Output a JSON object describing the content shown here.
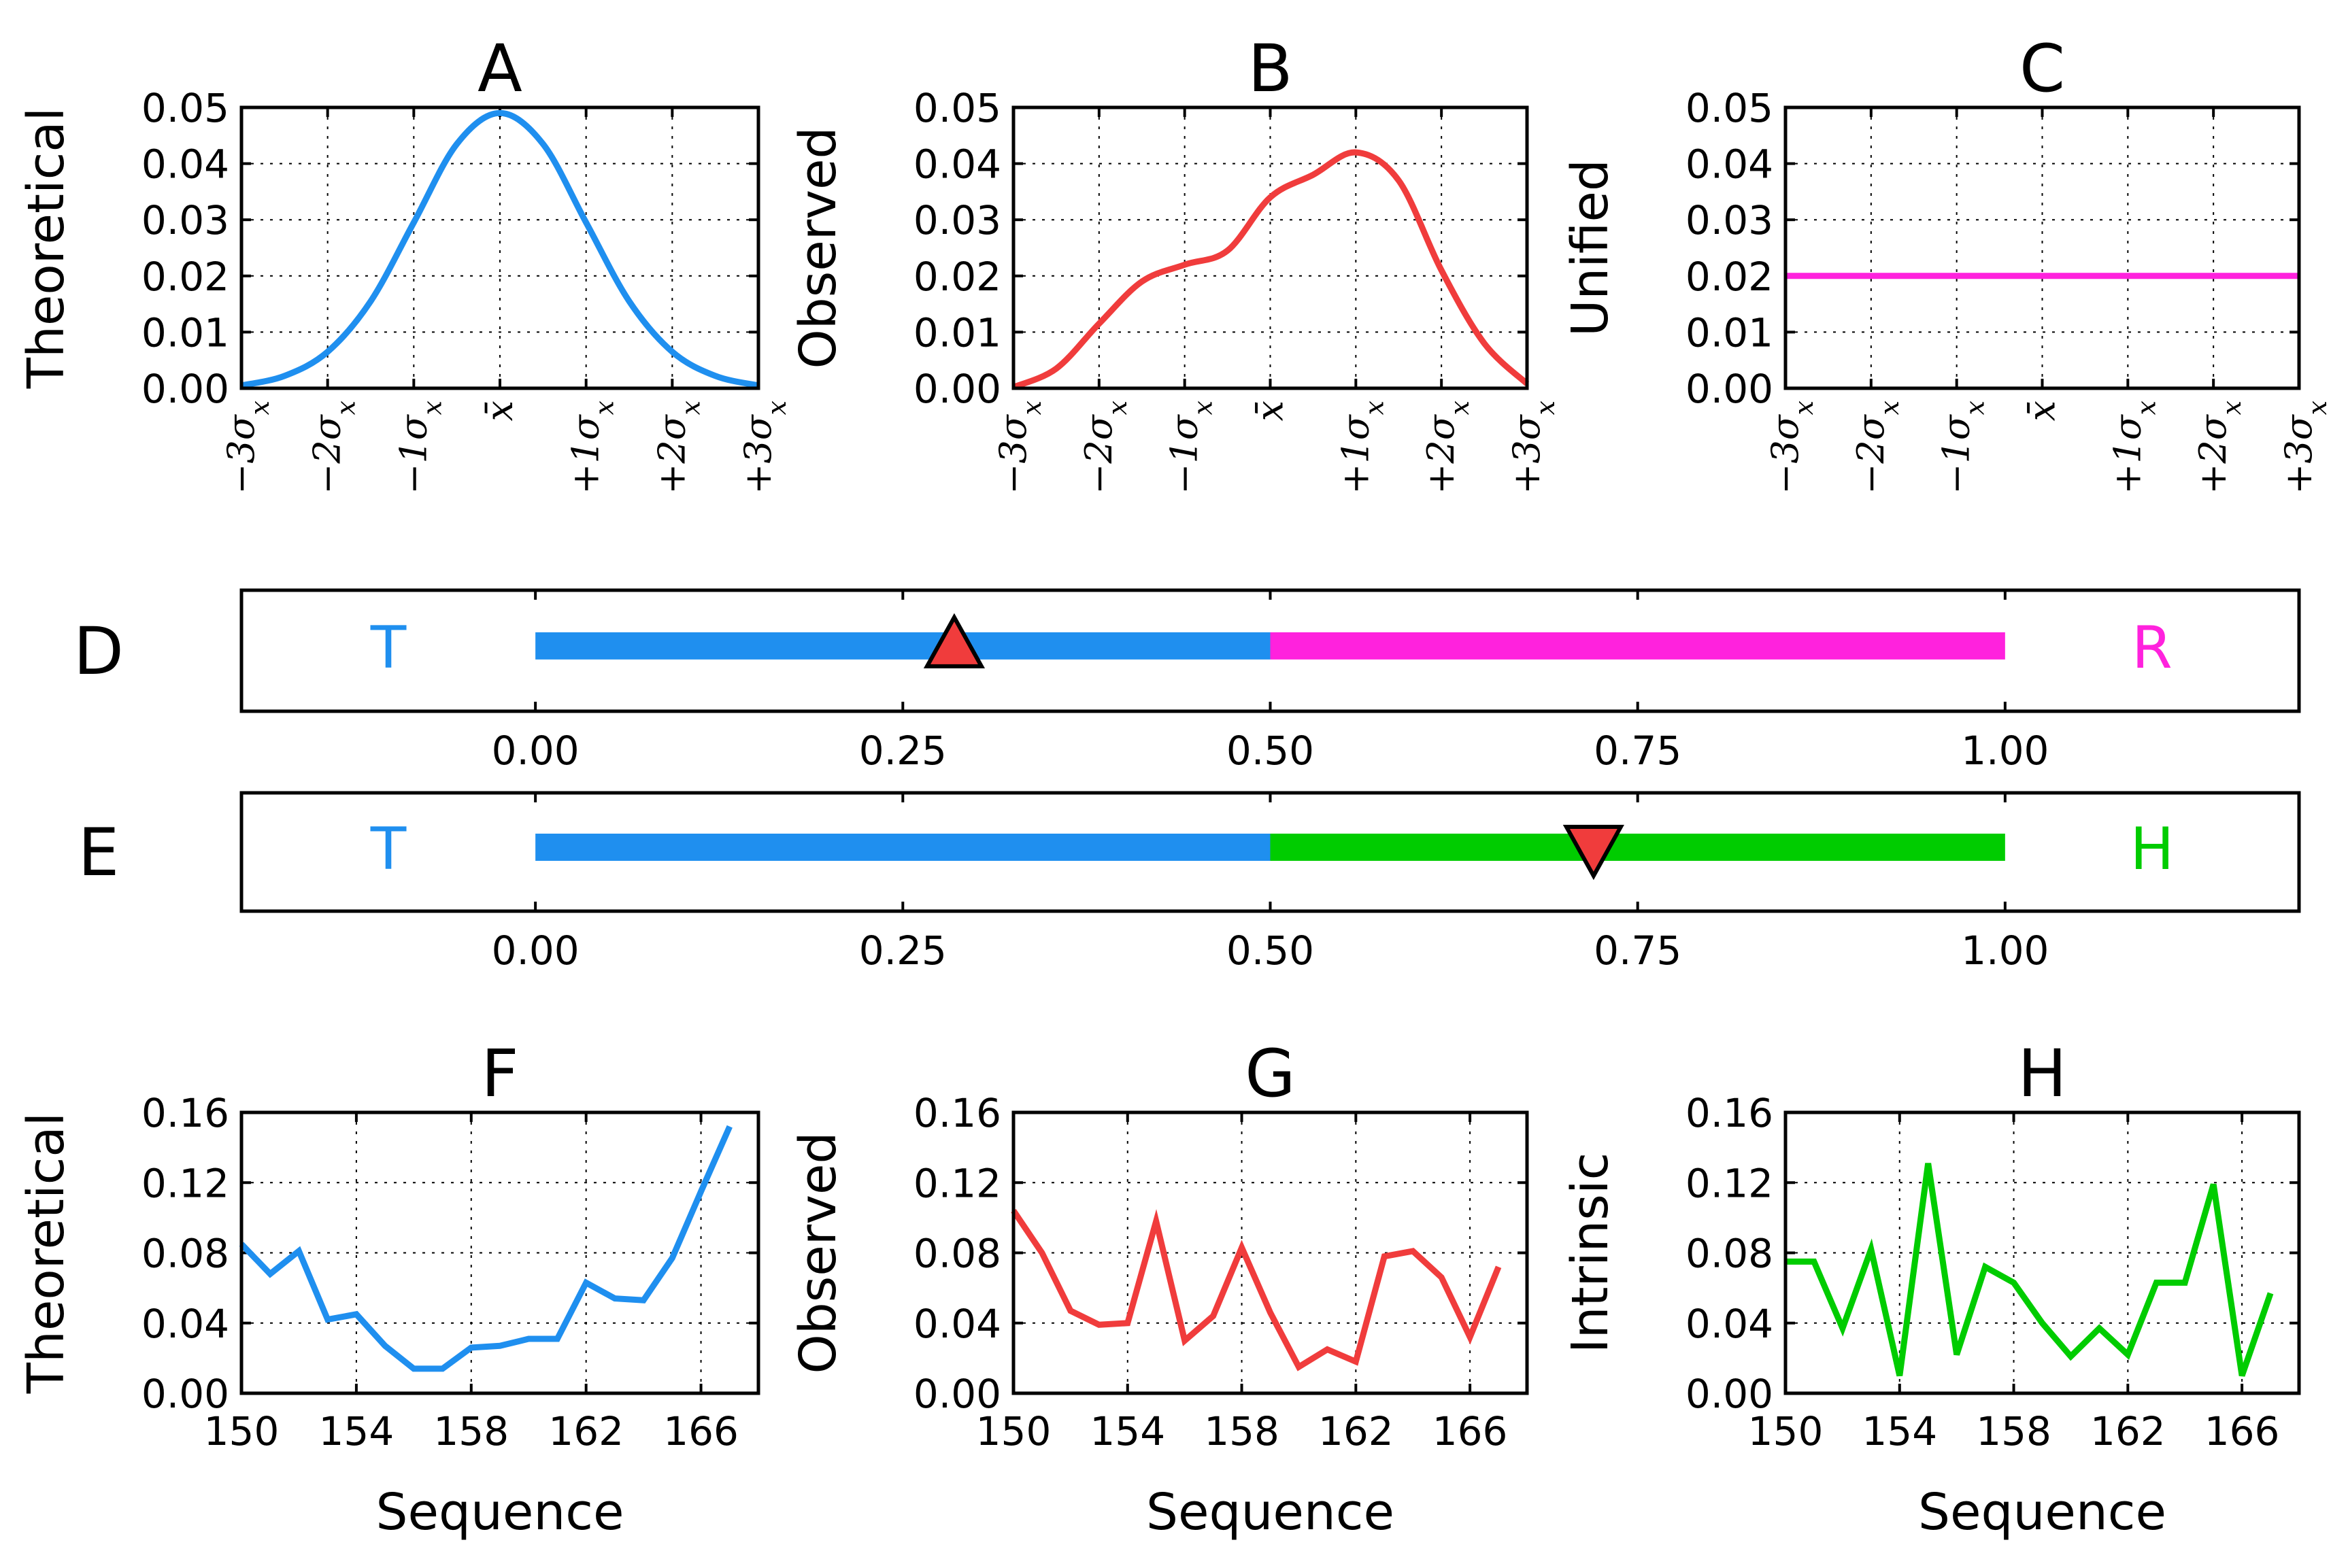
{
  "chart_data": [
    {
      "panel": "A",
      "type": "line",
      "title": "A",
      "ylabel": "Theoretical",
      "xlim": [
        -3,
        3
      ],
      "ylim": [
        0,
        0.05
      ],
      "yticks": [
        "0.00",
        "0.01",
        "0.02",
        "0.03",
        "0.04",
        "0.05"
      ],
      "xticks": [
        "−3σ",
        "−2σ",
        "−1σ",
        "x̄",
        "+1σ",
        "+2σ",
        "+3σ"
      ],
      "xtick_subscript": "x",
      "color": "#1f8fef",
      "x": [
        -3,
        -2.5,
        -2,
        -1.5,
        -1,
        -0.5,
        0,
        0.5,
        1,
        1.5,
        2,
        2.5,
        3
      ],
      "y": [
        0.0005,
        0.0022,
        0.0065,
        0.0155,
        0.0295,
        0.0435,
        0.049,
        0.0435,
        0.0295,
        0.0155,
        0.0065,
        0.0022,
        0.0005
      ]
    },
    {
      "panel": "B",
      "type": "line",
      "title": "B",
      "ylabel": "Observed",
      "xlim": [
        -3,
        3
      ],
      "ylim": [
        0,
        0.05
      ],
      "yticks": [
        "0.00",
        "0.01",
        "0.02",
        "0.03",
        "0.04",
        "0.05"
      ],
      "xticks": [
        "−3σ",
        "−2σ",
        "−1σ",
        "x̄",
        "+1σ",
        "+2σ",
        "+3σ"
      ],
      "xtick_subscript": "x",
      "color": "#f03c3c",
      "x": [
        -3,
        -2.5,
        -2,
        -1.5,
        -1,
        -0.5,
        0,
        0.5,
        1,
        1.5,
        2,
        2.5,
        3
      ],
      "y": [
        0.0002,
        0.0035,
        0.0115,
        0.019,
        0.022,
        0.0245,
        0.034,
        0.038,
        0.042,
        0.037,
        0.021,
        0.008,
        0.0008
      ]
    },
    {
      "panel": "C",
      "type": "line",
      "title": "C",
      "ylabel": "Unified",
      "xlim": [
        -3,
        3
      ],
      "ylim": [
        0,
        0.05
      ],
      "yticks": [
        "0.00",
        "0.01",
        "0.02",
        "0.03",
        "0.04",
        "0.05"
      ],
      "xticks": [
        "−3σ",
        "−2σ",
        "−1σ",
        "x̄",
        "+1σ",
        "+2σ",
        "+3σ"
      ],
      "xtick_subscript": "x",
      "color": "#ff22dd",
      "x": [
        -3,
        3
      ],
      "y": [
        0.02,
        0.02
      ]
    },
    {
      "panel": "D",
      "type": "bar",
      "title": "D",
      "left_label": "T",
      "right_label": "R",
      "left_color": "#1f8fef",
      "right_color": "#ff22dd",
      "xlim": [
        -0.2,
        1.2
      ],
      "segments": [
        [
          0,
          0.5
        ],
        [
          0.5,
          1.0
        ]
      ],
      "marker": 0.285,
      "marker_direction": "up",
      "marker_color": "#f03c3c",
      "xticks": [
        "0.00",
        "0.25",
        "0.50",
        "0.75",
        "1.00"
      ]
    },
    {
      "panel": "E",
      "type": "bar",
      "title": "E",
      "left_label": "T",
      "right_label": "H",
      "left_color": "#1f8fef",
      "right_color": "#00cc00",
      "xlim": [
        -0.2,
        1.2
      ],
      "segments": [
        [
          0,
          0.5
        ],
        [
          0.5,
          1.0
        ]
      ],
      "marker": 0.72,
      "marker_direction": "down",
      "marker_color": "#f03c3c",
      "xticks": [
        "0.00",
        "0.25",
        "0.50",
        "0.75",
        "1.00"
      ]
    },
    {
      "panel": "F",
      "type": "line",
      "title": "F",
      "ylabel": "Theoretical",
      "xlabel": "Sequence",
      "xlim": [
        150,
        168
      ],
      "ylim": [
        0,
        0.16
      ],
      "yticks": [
        "0.00",
        "0.04",
        "0.08",
        "0.12",
        "0.16"
      ],
      "xticks": [
        "150",
        "154",
        "158",
        "162",
        "166"
      ],
      "color": "#1f8fef",
      "x": [
        150,
        151,
        152,
        153,
        154,
        155,
        156,
        157,
        158,
        159,
        160,
        161,
        162,
        163,
        164,
        165,
        166,
        167
      ],
      "y": [
        0.085,
        0.068,
        0.081,
        0.042,
        0.045,
        0.027,
        0.014,
        0.014,
        0.026,
        0.027,
        0.031,
        0.031,
        0.063,
        0.054,
        0.053,
        0.077,
        0.115,
        0.152
      ]
    },
    {
      "panel": "G",
      "type": "line",
      "title": "G",
      "ylabel": "Observed",
      "xlabel": "Sequence",
      "xlim": [
        150,
        168
      ],
      "ylim": [
        0,
        0.16
      ],
      "yticks": [
        "0.00",
        "0.04",
        "0.08",
        "0.12",
        "0.16"
      ],
      "xticks": [
        "150",
        "154",
        "158",
        "162",
        "166"
      ],
      "color": "#f03c3c",
      "x": [
        150,
        151,
        152,
        153,
        154,
        155,
        156,
        157,
        158,
        159,
        160,
        161,
        162,
        163,
        164,
        165,
        166,
        167
      ],
      "y": [
        0.104,
        0.08,
        0.047,
        0.039,
        0.04,
        0.098,
        0.03,
        0.044,
        0.083,
        0.046,
        0.015,
        0.025,
        0.018,
        0.078,
        0.081,
        0.066,
        0.032,
        0.072
      ]
    },
    {
      "panel": "H",
      "type": "line",
      "title": "H",
      "ylabel": "Intrinsic",
      "xlabel": "Sequence",
      "xlim": [
        150,
        168
      ],
      "ylim": [
        0,
        0.16
      ],
      "yticks": [
        "0.00",
        "0.04",
        "0.08",
        "0.12",
        "0.16"
      ],
      "xticks": [
        "150",
        "154",
        "158",
        "162",
        "166"
      ],
      "color": "#00cc00",
      "x": [
        150,
        151,
        152,
        153,
        154,
        155,
        156,
        157,
        158,
        159,
        160,
        161,
        162,
        163,
        164,
        165,
        166,
        167
      ],
      "y": [
        0.075,
        0.075,
        0.037,
        0.082,
        0.01,
        0.131,
        0.022,
        0.072,
        0.063,
        0.04,
        0.021,
        0.037,
        0.022,
        0.063,
        0.063,
        0.119,
        0.01,
        0.057
      ]
    }
  ]
}
